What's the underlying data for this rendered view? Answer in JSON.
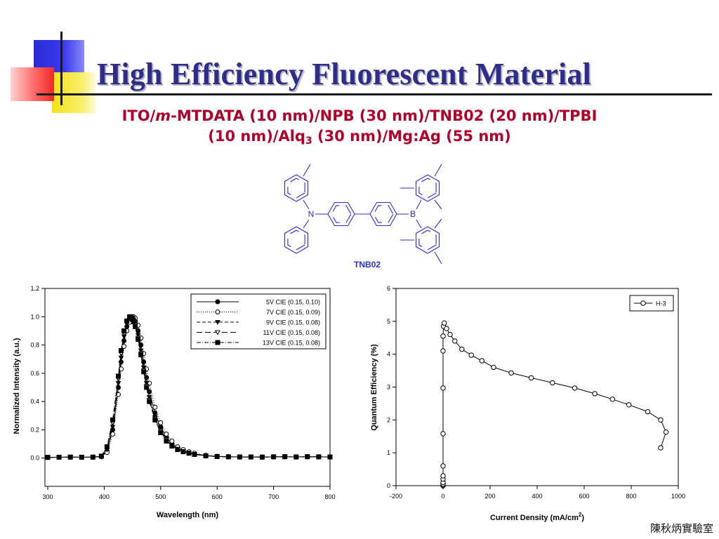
{
  "slide": {
    "title": "High Efficiency Fluorescent Material",
    "subtitle": {
      "p1": "ITO/",
      "p2": "m",
      "p3": "-MTDATA (10 nm)/NPB (30 nm)/TNB02 (20 nm)/TPBI",
      "p4": "(10 nm)/Alq",
      "p5": "3",
      "p6": " (30 nm)/Mg:Ag (55 nm)"
    },
    "molecule": {
      "name": "TNB02",
      "atom_n": "N",
      "atom_b": "B"
    },
    "footer": "陳秋炳實驗室"
  },
  "colors": {
    "title": "#2e2e8a",
    "subtitle": "#b0002a",
    "molecule": "#2b2bd6"
  },
  "chart_data": [
    {
      "type": "line",
      "xlabel": "Wavelength (nm)",
      "ylabel": "Normalized Intensity (a.u.)",
      "xlim": [
        295,
        800
      ],
      "ylim": [
        -0.2,
        1.2
      ],
      "xticks": [
        300,
        400,
        500,
        600,
        700,
        800
      ],
      "yticks": [
        0.0,
        0.2,
        0.4,
        0.6,
        0.8,
        1.0,
        1.2
      ],
      "ytick_labels": [
        "0.0",
        "0.2",
        "0.4",
        "0.6",
        "0.8",
        "1.0",
        "1.2"
      ],
      "legend": "top-right",
      "grid": false,
      "x": [
        300,
        320,
        340,
        360,
        380,
        395,
        405,
        415,
        425,
        430,
        435,
        440,
        445,
        448,
        450,
        452,
        455,
        460,
        465,
        470,
        475,
        480,
        490,
        500,
        510,
        520,
        530,
        540,
        550,
        560,
        580,
        600,
        620,
        640,
        660,
        680,
        700,
        720,
        740,
        760,
        780,
        800
      ],
      "series": [
        {
          "name": "5V CIE (0.15, 0.10)",
          "marker": "filled-circle",
          "dash": "solid",
          "values": [
            0.005,
            0.006,
            0.007,
            0.006,
            0.007,
            0.01,
            0.05,
            0.2,
            0.5,
            0.68,
            0.83,
            0.93,
            0.98,
            0.995,
            1.0,
            0.995,
            0.97,
            0.9,
            0.8,
            0.68,
            0.57,
            0.47,
            0.32,
            0.22,
            0.15,
            0.1,
            0.07,
            0.05,
            0.04,
            0.03,
            0.018,
            0.012,
            0.01,
            0.008,
            0.008,
            0.007,
            0.009,
            0.01,
            0.008,
            0.01,
            0.009,
            0.008
          ]
        },
        {
          "name": "7V CIE (0.15, 0.09)",
          "marker": "open-circle",
          "dash": "dotted",
          "values": [
            0.005,
            0.006,
            0.007,
            0.006,
            0.007,
            0.01,
            0.04,
            0.17,
            0.45,
            0.63,
            0.79,
            0.9,
            0.96,
            0.985,
            0.995,
            1.0,
            0.99,
            0.94,
            0.85,
            0.74,
            0.63,
            0.53,
            0.36,
            0.25,
            0.17,
            0.12,
            0.08,
            0.06,
            0.045,
            0.035,
            0.02,
            0.013,
            0.01,
            0.009,
            0.008,
            0.008,
            0.009,
            0.01,
            0.009,
            0.01,
            0.009,
            0.008
          ]
        },
        {
          "name": "9V CIE (0.15, 0.08)",
          "marker": "filled-triangle-down",
          "dash": "dash",
          "values": [
            0.005,
            0.006,
            0.007,
            0.006,
            0.007,
            0.012,
            0.06,
            0.22,
            0.53,
            0.71,
            0.86,
            0.95,
            0.99,
            1.0,
            0.99,
            0.98,
            0.95,
            0.87,
            0.76,
            0.64,
            0.53,
            0.43,
            0.29,
            0.2,
            0.13,
            0.09,
            0.065,
            0.048,
            0.037,
            0.028,
            0.017,
            0.011,
            0.009,
            0.008,
            0.008,
            0.007,
            0.009,
            0.01,
            0.008,
            0.01,
            0.009,
            0.008
          ]
        },
        {
          "name": "11V CIE (0.15, 0.08)",
          "marker": "open-triangle-down",
          "dash": "longdash",
          "values": [
            0.005,
            0.006,
            0.007,
            0.006,
            0.007,
            0.013,
            0.07,
            0.25,
            0.56,
            0.74,
            0.88,
            0.96,
            1.0,
            0.995,
            0.985,
            0.97,
            0.94,
            0.85,
            0.74,
            0.62,
            0.51,
            0.41,
            0.28,
            0.19,
            0.13,
            0.09,
            0.063,
            0.047,
            0.036,
            0.027,
            0.016,
            0.011,
            0.009,
            0.008,
            0.008,
            0.007,
            0.009,
            0.01,
            0.008,
            0.01,
            0.009,
            0.008
          ]
        },
        {
          "name": "13V CIE (0.15, 0.08)",
          "marker": "filled-square",
          "dash": "dashdot",
          "values": [
            0.005,
            0.006,
            0.007,
            0.006,
            0.007,
            0.014,
            0.08,
            0.27,
            0.58,
            0.76,
            0.9,
            0.97,
            1.0,
            0.99,
            0.98,
            0.965,
            0.93,
            0.84,
            0.73,
            0.61,
            0.5,
            0.4,
            0.27,
            0.18,
            0.12,
            0.085,
            0.06,
            0.045,
            0.035,
            0.026,
            0.016,
            0.011,
            0.009,
            0.008,
            0.008,
            0.007,
            0.009,
            0.01,
            0.008,
            0.01,
            0.009,
            0.008
          ]
        }
      ]
    },
    {
      "type": "line",
      "xlabel": "Current Density (mA/cm",
      "xlabel_sup": "2",
      "xlabel_end": ")",
      "ylabel": "Quantum Efficiency (%)",
      "xlim": [
        -200,
        1000
      ],
      "ylim": [
        0,
        6
      ],
      "xticks": [
        -200,
        0,
        200,
        400,
        600,
        800,
        1000
      ],
      "yticks": [
        0,
        1,
        2,
        3,
        4,
        5,
        6
      ],
      "ytick_labels": [
        "0",
        "1",
        "2",
        "3",
        "4",
        "5",
        "6"
      ],
      "legend": "top-right",
      "grid": false,
      "series": [
        {
          "name": "H-3",
          "marker": "open-circle",
          "dash": "solid",
          "x": [
            0,
            0,
            0,
            0,
            0,
            0,
            0,
            0,
            0,
            0,
            0,
            2,
            5,
            15,
            30,
            50,
            80,
            120,
            165,
            215,
            290,
            375,
            465,
            560,
            645,
            720,
            790,
            870,
            925,
            948,
            925
          ],
          "y": [
            0.0,
            0.02,
            0.05,
            0.1,
            0.2,
            0.3,
            0.6,
            1.58,
            2.97,
            4.1,
            4.55,
            4.85,
            4.95,
            4.78,
            4.6,
            4.4,
            4.15,
            3.97,
            3.8,
            3.6,
            3.43,
            3.28,
            3.13,
            2.97,
            2.8,
            2.63,
            2.46,
            2.25,
            2.0,
            1.63,
            1.15
          ]
        }
      ]
    }
  ]
}
